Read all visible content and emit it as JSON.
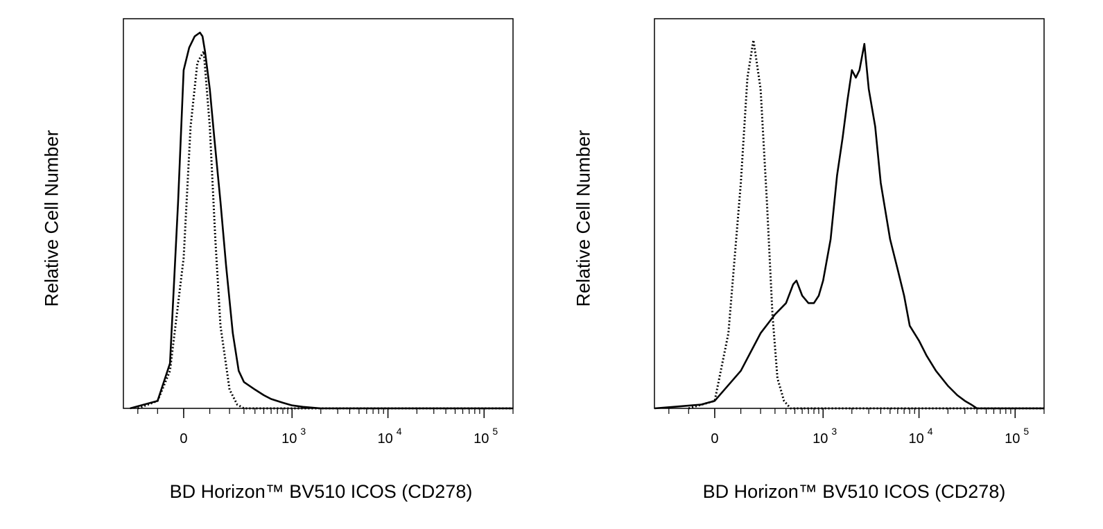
{
  "chart_data": [
    {
      "type": "line",
      "title": "",
      "xlabel": "BD Horizon™ BV510 ICOS (CD278)",
      "ylabel": "Relative Cell Number",
      "x_scale": "biexponential",
      "xlim": [
        -300,
        200000
      ],
      "ylim": [
        0,
        1
      ],
      "x_ticks": [
        {
          "base": "0",
          "exp": "",
          "value": 0
        },
        {
          "base": "10",
          "exp": "3",
          "value": 1000
        },
        {
          "base": "10",
          "exp": "4",
          "value": 10000
        },
        {
          "base": "10",
          "exp": "5",
          "value": 100000
        }
      ],
      "series": [
        {
          "style": "dotted",
          "x": [
            -200,
            -100,
            -50,
            0,
            25,
            50,
            75,
            100,
            125,
            150,
            200,
            250,
            300,
            400,
            600,
            1000,
            10000,
            100000,
            200000
          ],
          "y": [
            0,
            0.02,
            0.1,
            0.4,
            0.75,
            0.92,
            0.95,
            0.75,
            0.45,
            0.22,
            0.05,
            0.01,
            0,
            0,
            0,
            0,
            0,
            0,
            0
          ]
        },
        {
          "style": "solid",
          "x": [
            -250,
            -100,
            -50,
            -20,
            0,
            20,
            40,
            60,
            70,
            80,
            100,
            120,
            150,
            180,
            220,
            260,
            300,
            400,
            500,
            600,
            800,
            1000,
            1300,
            2000,
            10000,
            100000,
            200000
          ],
          "y": [
            0,
            0.02,
            0.12,
            0.55,
            0.9,
            0.96,
            0.99,
            1.0,
            0.99,
            0.95,
            0.85,
            0.72,
            0.55,
            0.38,
            0.2,
            0.1,
            0.07,
            0.05,
            0.035,
            0.025,
            0.015,
            0.008,
            0.004,
            0,
            0,
            0,
            0
          ]
        }
      ]
    },
    {
      "type": "line",
      "title": "",
      "xlabel": "BD Horizon™ BV510 ICOS (CD278)",
      "ylabel": "Relative Cell Number",
      "x_scale": "biexponential",
      "xlim": [
        -300,
        200000
      ],
      "ylim": [
        0,
        1
      ],
      "x_ticks": [
        {
          "base": "0",
          "exp": "",
          "value": 0
        },
        {
          "base": "10",
          "exp": "3",
          "value": 1000
        },
        {
          "base": "10",
          "exp": "4",
          "value": 10000
        },
        {
          "base": "10",
          "exp": "5",
          "value": 100000
        }
      ],
      "series": [
        {
          "style": "dotted",
          "x": [
            -100,
            0,
            50,
            100,
            130,
            160,
            200,
            240,
            280,
            320,
            380,
            450,
            550,
            1000,
            100000,
            200000
          ],
          "y": [
            0,
            0.02,
            0.2,
            0.6,
            0.88,
            0.98,
            0.85,
            0.55,
            0.25,
            0.08,
            0.02,
            0,
            0,
            0,
            0,
            0
          ]
        },
        {
          "style": "solid",
          "x": [
            -300,
            -150,
            -50,
            0,
            100,
            200,
            300,
            400,
            480,
            520,
            600,
            700,
            800,
            900,
            1000,
            1200,
            1400,
            1600,
            1800,
            2000,
            2200,
            2400,
            2700,
            3000,
            3500,
            4000,
            5000,
            6000,
            7000,
            8000,
            10000,
            12000,
            15000,
            20000,
            25000,
            30000,
            35000,
            40000,
            100000,
            200000
          ],
          "y": [
            0,
            0.005,
            0.01,
            0.02,
            0.1,
            0.2,
            0.25,
            0.28,
            0.33,
            0.34,
            0.3,
            0.28,
            0.28,
            0.3,
            0.34,
            0.45,
            0.62,
            0.72,
            0.82,
            0.9,
            0.88,
            0.9,
            0.97,
            0.85,
            0.75,
            0.6,
            0.45,
            0.37,
            0.3,
            0.22,
            0.18,
            0.14,
            0.1,
            0.06,
            0.035,
            0.02,
            0.01,
            0,
            0,
            0
          ]
        }
      ]
    }
  ]
}
